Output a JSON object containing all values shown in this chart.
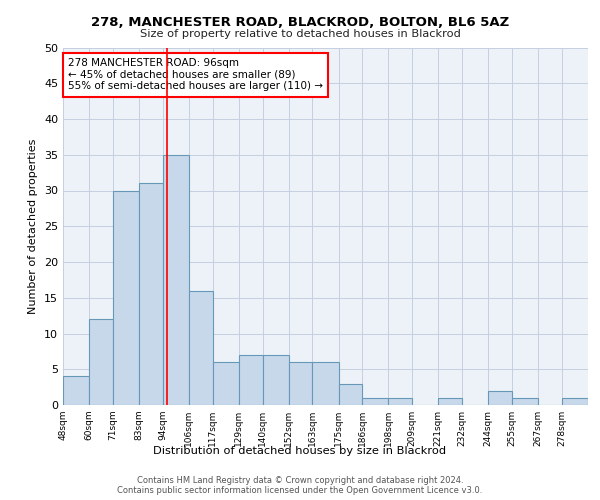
{
  "title1": "278, MANCHESTER ROAD, BLACKROD, BOLTON, BL6 5AZ",
  "title2": "Size of property relative to detached houses in Blackrod",
  "xlabel": "Distribution of detached houses by size in Blackrod",
  "ylabel": "Number of detached properties",
  "bar_edges": [
    48,
    60,
    71,
    83,
    94,
    106,
    117,
    129,
    140,
    152,
    163,
    175,
    186,
    198,
    209,
    221,
    232,
    244,
    255,
    267,
    278,
    290
  ],
  "bar_heights": [
    4,
    12,
    30,
    31,
    35,
    16,
    6,
    7,
    7,
    6,
    6,
    3,
    1,
    1,
    0,
    1,
    0,
    2,
    1,
    0,
    1
  ],
  "tick_labels": [
    "48sqm",
    "60sqm",
    "71sqm",
    "83sqm",
    "94sqm",
    "106sqm",
    "117sqm",
    "129sqm",
    "140sqm",
    "152sqm",
    "163sqm",
    "175sqm",
    "186sqm",
    "198sqm",
    "209sqm",
    "221sqm",
    "232sqm",
    "244sqm",
    "255sqm",
    "267sqm",
    "278sqm"
  ],
  "bar_color": "#c8d8eb",
  "bar_edge_color": "#6898b8",
  "ylim": [
    0,
    50
  ],
  "yticks": [
    0,
    5,
    10,
    15,
    20,
    25,
    30,
    35,
    40,
    45,
    50
  ],
  "red_line_x": 96,
  "annotation_text": "278 MANCHESTER ROAD: 96sqm\n← 45% of detached houses are smaller (89)\n55% of semi-detached houses are larger (110) →",
  "footer1": "Contains HM Land Registry data © Crown copyright and database right 2024.",
  "footer2": "Contains public sector information licensed under the Open Government Licence v3.0.",
  "bg_color": "#edf2f8",
  "grid_color": "#c5cfe0"
}
